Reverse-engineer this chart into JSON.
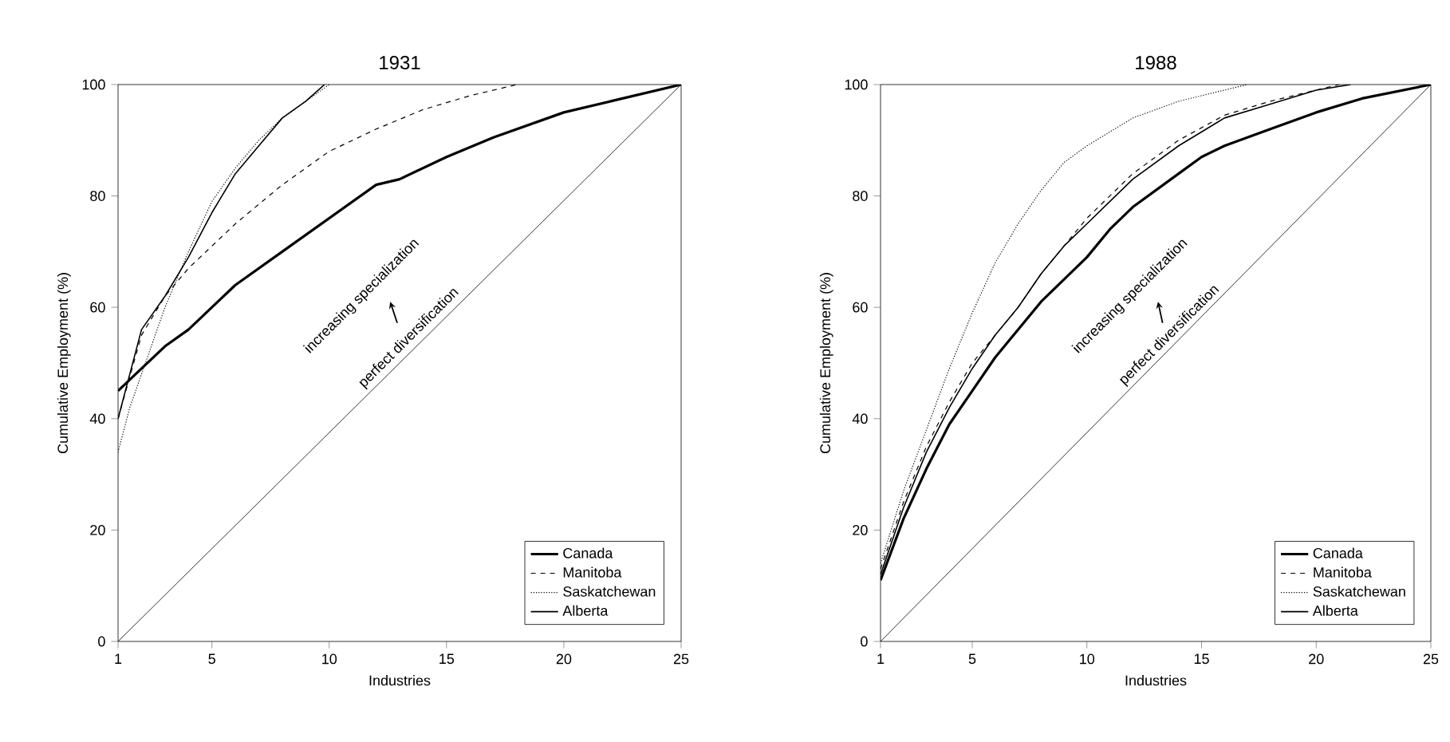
{
  "chart_data": [
    {
      "type": "line",
      "title": "1931",
      "xlabel": "Industries",
      "ylabel": "Cumulative Employment (%)",
      "xlim": [
        1,
        25
      ],
      "ylim": [
        0,
        100
      ],
      "xticks": [
        1,
        5,
        10,
        15,
        20,
        25
      ],
      "yticks": [
        0,
        20,
        40,
        60,
        80,
        100
      ],
      "legend": "bottom right",
      "annotations": [
        "increasing specialization",
        "perfect diversification"
      ],
      "series": [
        {
          "name": "Canada",
          "color": "#000000",
          "line_style": "solid",
          "x": [
            1,
            2,
            3,
            4,
            5,
            6,
            8,
            10,
            12,
            13,
            15,
            17,
            20,
            22,
            25
          ],
          "values": [
            45,
            49,
            53,
            56,
            60,
            64,
            70,
            76,
            82,
            83,
            87,
            90.5,
            95,
            97,
            100
          ]
        },
        {
          "name": "Manitoba",
          "color": "#000000",
          "line_style": "dashed",
          "x": [
            1,
            2,
            3,
            4,
            5,
            6,
            8,
            10,
            12,
            14,
            16,
            18
          ],
          "values": [
            40,
            55,
            62,
            67,
            71,
            75,
            82,
            88,
            92,
            95.5,
            98,
            100
          ]
        },
        {
          "name": "Saskatchewan",
          "color": "#000000",
          "line_style": "dotted",
          "x": [
            1,
            1.5,
            2,
            3,
            4,
            5,
            6,
            7,
            8,
            9,
            10
          ],
          "values": [
            34,
            42,
            48,
            60,
            70,
            79,
            85,
            90,
            94,
            97,
            100
          ]
        },
        {
          "name": "Alberta",
          "color": "#000000",
          "line_style": "solid",
          "x": [
            1,
            1.5,
            2,
            3,
            4,
            5,
            6,
            7,
            8,
            9,
            9.8
          ],
          "values": [
            40,
            48,
            56,
            62,
            69,
            77,
            84,
            89,
            94,
            97,
            100
          ]
        },
        {
          "color": "#000000",
          "line_style": "solid",
          "x": [
            1,
            25
          ],
          "values": [
            0,
            100
          ]
        }
      ]
    },
    {
      "type": "line",
      "title": "1988",
      "xlabel": "Industries",
      "ylabel": "Cumulative Employment (%)",
      "xlim": [
        1,
        25
      ],
      "ylim": [
        0,
        100
      ],
      "xticks": [
        1,
        5,
        10,
        15,
        20,
        25
      ],
      "yticks": [
        0,
        20,
        40,
        60,
        80,
        100
      ],
      "legend": "bottom right",
      "annotations": [
        "increasing specialization",
        "perfect diversification"
      ],
      "series": [
        {
          "name": "Canada",
          "color": "#000000",
          "line_style": "solid",
          "x": [
            1,
            2,
            3,
            4,
            5,
            6,
            8,
            10,
            11,
            12,
            14,
            15,
            16,
            18,
            20,
            22,
            25
          ],
          "values": [
            11,
            22,
            31,
            39,
            45,
            51,
            61,
            69,
            74,
            78,
            84,
            87,
            89,
            92,
            95,
            97.5,
            100
          ]
        },
        {
          "name": "Manitoba",
          "color": "#000000",
          "line_style": "dashed",
          "x": [
            1,
            2,
            3,
            4,
            5,
            6,
            7,
            8,
            9,
            10,
            12,
            14,
            16,
            18,
            20,
            21
          ],
          "values": [
            13,
            25,
            35,
            43,
            50,
            55,
            60,
            66,
            71,
            76,
            84,
            90,
            94.5,
            97,
            99,
            100
          ]
        },
        {
          "name": "Saskatchewan",
          "color": "#000000",
          "line_style": "dotted",
          "x": [
            1,
            2,
            3,
            4,
            5,
            6,
            7,
            8,
            9,
            10,
            12,
            14,
            16,
            17
          ],
          "values": [
            14,
            27,
            38,
            49,
            59,
            68,
            75,
            81,
            86,
            89,
            94,
            97,
            99,
            100
          ]
        },
        {
          "name": "Alberta",
          "color": "#000000",
          "line_style": "solid",
          "x": [
            1,
            2,
            3,
            4,
            5,
            6,
            7,
            8,
            9,
            10,
            12,
            14,
            16,
            18,
            20,
            21.5
          ],
          "values": [
            12,
            24,
            34,
            42,
            49,
            55,
            60,
            66,
            71,
            75,
            83,
            89,
            94,
            96.5,
            99,
            100
          ]
        },
        {
          "color": "#000000",
          "line_style": "solid",
          "x": [
            1,
            25
          ],
          "values": [
            0,
            100
          ]
        }
      ]
    }
  ]
}
